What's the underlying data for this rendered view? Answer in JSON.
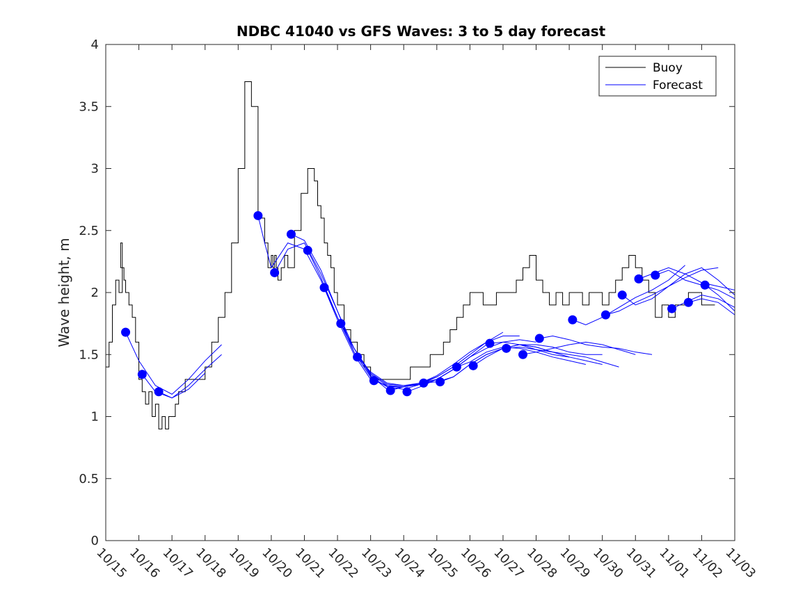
{
  "chart_data": {
    "type": "line",
    "title": "NDBC 41040 vs GFS Waves: 3 to 5 day forecast",
    "xlabel": "",
    "ylabel": "Wave height, m",
    "xlim": [
      0,
      19
    ],
    "ylim": [
      0,
      4
    ],
    "x_unit": "days since 10/15",
    "xtick_labels": [
      "10/15",
      "10/16",
      "10/17",
      "10/18",
      "10/19",
      "10/20",
      "10/21",
      "10/22",
      "10/23",
      "10/24",
      "10/25",
      "10/26",
      "10/27",
      "10/28",
      "10/29",
      "10/30",
      "10/31",
      "11/01",
      "11/02",
      "11/03"
    ],
    "ytick_labels": [
      "0",
      "0.5",
      "1",
      "1.5",
      "2",
      "2.5",
      "3",
      "3.5",
      "4"
    ],
    "ytick_values": [
      0,
      0.5,
      1,
      1.5,
      2,
      2.5,
      3,
      3.5,
      4
    ],
    "legend": {
      "position": "top-right",
      "entries": [
        "Buoy",
        "Forecast"
      ]
    },
    "series": [
      {
        "name": "Buoy",
        "color": "#000000",
        "x": [
          0,
          0.1,
          0.2,
          0.3,
          0.4,
          0.5,
          0.45,
          0.55,
          0.6,
          0.7,
          0.8,
          0.9,
          1.0,
          1.1,
          1.2,
          1.3,
          1.4,
          1.5,
          1.6,
          1.7,
          1.8,
          1.9,
          2.0,
          2.1,
          2.2,
          2.4,
          2.6,
          2.8,
          3.0,
          3.2,
          3.4,
          3.6,
          3.8,
          4.0,
          4.2,
          4.4,
          4.6,
          4.8,
          4.9,
          5.0,
          5.05,
          5.1,
          5.15,
          5.2,
          5.3,
          5.4,
          5.5,
          5.7,
          5.9,
          6.1,
          6.3,
          6.4,
          6.5,
          6.6,
          6.7,
          6.8,
          6.9,
          7.0,
          7.2,
          7.4,
          7.6,
          7.8,
          8.0,
          8.2,
          8.4,
          8.6,
          8.8,
          9.0,
          9.2,
          9.4,
          9.6,
          9.8,
          10.0,
          10.2,
          10.4,
          10.6,
          10.8,
          11.0,
          11.2,
          11.4,
          11.6,
          11.8,
          12.0,
          12.2,
          12.4,
          12.6,
          12.8,
          13.0,
          13.2,
          13.4,
          13.6,
          13.8,
          14.0,
          14.2,
          14.4,
          14.6,
          14.8,
          15.0,
          15.2,
          15.4,
          15.6,
          15.8,
          16.0,
          16.2,
          16.4,
          16.6,
          16.8,
          17.0,
          17.2,
          17.4,
          17.6,
          17.8,
          18.0,
          18.2,
          18.4
        ],
        "values": [
          1.4,
          1.6,
          1.9,
          2.1,
          2.0,
          2.4,
          2.2,
          2.1,
          2.0,
          1.9,
          1.8,
          1.6,
          1.3,
          1.2,
          1.1,
          1.2,
          1.0,
          1.1,
          0.9,
          1.0,
          0.9,
          1.0,
          1.0,
          1.1,
          1.2,
          1.3,
          1.3,
          1.3,
          1.4,
          1.6,
          1.8,
          2.0,
          2.4,
          3.0,
          3.7,
          3.5,
          2.6,
          2.4,
          2.2,
          2.3,
          2.2,
          2.3,
          2.2,
          2.1,
          2.2,
          2.3,
          2.2,
          2.5,
          2.8,
          3.0,
          2.9,
          2.7,
          2.6,
          2.4,
          2.3,
          2.2,
          2.0,
          1.9,
          1.7,
          1.6,
          1.5,
          1.4,
          1.3,
          1.3,
          1.3,
          1.3,
          1.3,
          1.3,
          1.4,
          1.4,
          1.4,
          1.5,
          1.5,
          1.6,
          1.7,
          1.8,
          1.9,
          2.0,
          2.0,
          1.9,
          1.9,
          2.0,
          2.0,
          2.0,
          2.1,
          2.2,
          2.3,
          2.1,
          2.0,
          1.9,
          2.0,
          1.9,
          2.0,
          2.0,
          1.9,
          2.0,
          2.0,
          1.9,
          2.0,
          2.1,
          2.2,
          2.3,
          2.2,
          2.1,
          2.0,
          1.8,
          1.9,
          1.8,
          1.9,
          1.9,
          2.0,
          2.0,
          1.9,
          1.9,
          1.9
        ]
      },
      {
        "name": "Forecast",
        "color": "#0000ff",
        "runs": [
          {
            "x": [
              0.6,
              1.0,
              1.5,
              2.0,
              2.5,
              3.0,
              3.5
            ],
            "values": [
              1.68,
              1.45,
              1.25,
              1.18,
              1.3,
              1.45,
              1.58
            ]
          },
          {
            "x": [
              1.1,
              1.5,
              2.0,
              2.5,
              3.0,
              3.5
            ],
            "values": [
              1.34,
              1.2,
              1.15,
              1.25,
              1.38,
              1.5
            ]
          },
          {
            "x": [
              1.6,
              2.0,
              2.5,
              3.0
            ],
            "values": [
              1.2,
              1.15,
              1.22,
              1.35
            ]
          },
          {
            "x": [
              4.6,
              4.8,
              5.0,
              5.5,
              6.0,
              6.5,
              7.0,
              7.5,
              8.0,
              8.5
            ],
            "values": [
              2.62,
              2.4,
              2.2,
              2.4,
              2.35,
              2.1,
              1.78,
              1.5,
              1.3,
              1.25
            ]
          },
          {
            "x": [
              5.1,
              5.5,
              6.0,
              6.5,
              7.0,
              7.5,
              8.0,
              8.5,
              9.0
            ],
            "values": [
              2.16,
              2.35,
              2.4,
              2.15,
              1.85,
              1.55,
              1.33,
              1.22,
              1.24
            ]
          },
          {
            "x": [
              5.6,
              6.0,
              6.5,
              7.0,
              7.5,
              8.0,
              8.5,
              9.0,
              9.5
            ],
            "values": [
              2.47,
              2.42,
              2.18,
              1.85,
              1.52,
              1.32,
              1.24,
              1.22,
              1.26
            ]
          },
          {
            "x": [
              6.1,
              6.5,
              7.0,
              7.5,
              8.0,
              8.5,
              9.0,
              9.5,
              10.0
            ],
            "values": [
              2.34,
              2.12,
              1.8,
              1.52,
              1.32,
              1.24,
              1.24,
              1.26,
              1.3
            ]
          },
          {
            "x": [
              6.6,
              7.0,
              7.5,
              8.0,
              8.5,
              9.0,
              9.5,
              10.0,
              10.5
            ],
            "values": [
              2.04,
              1.8,
              1.55,
              1.34,
              1.25,
              1.24,
              1.27,
              1.3,
              1.38
            ]
          },
          {
            "x": [
              7.1,
              7.5,
              8.0,
              8.5,
              9.0,
              9.5,
              10.0,
              10.5,
              11.0
            ],
            "values": [
              1.75,
              1.55,
              1.35,
              1.26,
              1.25,
              1.27,
              1.32,
              1.4,
              1.5
            ]
          },
          {
            "x": [
              7.6,
              8.0,
              8.5,
              9.0,
              9.5,
              10.0,
              10.5,
              11.0,
              11.5
            ],
            "values": [
              1.48,
              1.36,
              1.27,
              1.25,
              1.26,
              1.3,
              1.38,
              1.48,
              1.58
            ]
          },
          {
            "x": [
              8.1,
              8.5,
              9.0,
              9.5,
              10.0,
              10.5,
              11.0,
              11.5,
              12.0
            ],
            "values": [
              1.29,
              1.25,
              1.24,
              1.26,
              1.32,
              1.4,
              1.5,
              1.6,
              1.68
            ]
          },
          {
            "x": [
              8.6,
              9.0,
              9.5,
              10.0,
              10.5,
              11.0,
              11.5,
              12.0,
              12.5
            ],
            "values": [
              1.21,
              1.24,
              1.27,
              1.33,
              1.42,
              1.52,
              1.6,
              1.65,
              1.65
            ]
          },
          {
            "x": [
              9.1,
              9.5,
              10.0,
              10.5,
              11.0,
              11.5,
              12.0,
              12.5,
              13.0
            ],
            "values": [
              1.2,
              1.24,
              1.3,
              1.38,
              1.48,
              1.55,
              1.6,
              1.62,
              1.6
            ]
          },
          {
            "x": [
              9.6,
              10.0,
              10.5,
              11.0,
              11.5,
              12.0,
              12.5,
              13.0,
              13.5
            ],
            "values": [
              1.27,
              1.28,
              1.32,
              1.42,
              1.5,
              1.55,
              1.58,
              1.56,
              1.52
            ]
          },
          {
            "x": [
              10.1,
              10.5,
              11.0,
              11.5,
              12.0,
              12.5,
              13.0,
              13.5,
              14.0
            ],
            "values": [
              1.28,
              1.32,
              1.42,
              1.5,
              1.55,
              1.58,
              1.56,
              1.52,
              1.48
            ]
          },
          {
            "x": [
              10.6,
              11.0,
              11.5,
              12.0,
              12.5,
              13.0,
              13.5,
              14.0,
              14.5
            ],
            "values": [
              1.4,
              1.44,
              1.52,
              1.56,
              1.55,
              1.52,
              1.48,
              1.45,
              1.42
            ]
          },
          {
            "x": [
              11.1,
              11.5,
              12.0,
              12.5,
              13.0,
              13.5,
              14.0,
              14.5,
              15.0
            ],
            "values": [
              1.41,
              1.48,
              1.55,
              1.58,
              1.58,
              1.56,
              1.52,
              1.5,
              1.5
            ]
          },
          {
            "x": [
              11.6,
              12.0,
              12.5,
              13.0,
              13.5,
              14.0,
              14.5,
              15.0
            ],
            "values": [
              1.59,
              1.6,
              1.58,
              1.54,
              1.5,
              1.48,
              1.45,
              1.42
            ]
          },
          {
            "x": [
              12.1,
              12.5,
              13.0,
              13.5,
              14.0,
              14.5,
              15.0,
              15.5
            ],
            "values": [
              1.55,
              1.56,
              1.54,
              1.52,
              1.5,
              1.48,
              1.44,
              1.4
            ]
          },
          {
            "x": [
              12.6,
              13.0,
              13.5,
              14.0,
              14.5,
              15.0,
              15.5,
              16.0
            ],
            "values": [
              1.5,
              1.52,
              1.55,
              1.58,
              1.6,
              1.58,
              1.54,
              1.5
            ]
          },
          {
            "x": [
              13.1,
              13.5,
              14.0,
              14.5,
              15.0,
              15.5,
              16.0,
              16.5
            ],
            "values": [
              1.63,
              1.65,
              1.62,
              1.58,
              1.56,
              1.55,
              1.52,
              1.5
            ]
          },
          {
            "x": [
              14.1,
              14.5,
              15.0,
              15.5,
              16.0,
              16.5,
              17.0,
              17.5
            ],
            "values": [
              1.78,
              1.74,
              1.8,
              1.88,
              1.96,
              2.02,
              2.1,
              2.22
            ]
          },
          {
            "x": [
              15.1,
              15.5,
              16.0,
              16.5,
              17.0,
              17.5,
              18.0,
              18.5
            ],
            "values": [
              1.82,
              1.85,
              1.92,
              1.98,
              2.05,
              2.12,
              2.18,
              2.2
            ]
          },
          {
            "x": [
              15.6,
              16.0,
              16.5,
              17.0,
              17.5,
              18.0,
              18.5,
              19.0
            ],
            "values": [
              1.98,
              1.9,
              1.95,
              2.05,
              2.15,
              2.2,
              2.1,
              1.98
            ]
          },
          {
            "x": [
              16.1,
              16.5,
              17.0,
              17.5,
              18.0,
              18.5,
              19.0
            ],
            "values": [
              2.11,
              2.15,
              2.2,
              2.15,
              2.08,
              2.05,
              2.02
            ]
          },
          {
            "x": [
              16.6,
              17.0,
              17.5,
              18.0,
              18.5,
              19.0
            ],
            "values": [
              2.14,
              2.18,
              2.1,
              2.06,
              2.02,
              1.95
            ]
          },
          {
            "x": [
              17.1,
              17.5,
              18.0,
              18.5,
              19.0
            ],
            "values": [
              1.87,
              1.92,
              1.98,
              1.95,
              1.88
            ]
          },
          {
            "x": [
              17.6,
              18.0,
              18.5,
              19.0
            ],
            "values": [
              1.92,
              1.95,
              1.92,
              1.82
            ]
          },
          {
            "x": [
              18.1,
              18.5,
              19.0
            ],
            "values": [
              2.06,
              1.98,
              1.85
            ]
          }
        ],
        "markers": {
          "x": [
            0.6,
            1.1,
            1.6,
            4.6,
            5.1,
            5.6,
            6.1,
            6.6,
            7.1,
            7.6,
            8.1,
            8.6,
            9.1,
            9.6,
            10.1,
            10.6,
            11.1,
            11.6,
            12.1,
            12.6,
            13.1,
            14.1,
            15.1,
            15.6,
            16.1,
            16.6,
            17.1,
            17.6,
            18.1
          ],
          "values": [
            1.68,
            1.34,
            1.2,
            2.62,
            2.16,
            2.47,
            2.34,
            2.04,
            1.75,
            1.48,
            1.29,
            1.21,
            1.2,
            1.27,
            1.28,
            1.4,
            1.41,
            1.59,
            1.55,
            1.5,
            1.63,
            1.78,
            1.82,
            1.98,
            2.11,
            2.14,
            1.87,
            1.92,
            2.06
          ]
        }
      }
    ]
  }
}
